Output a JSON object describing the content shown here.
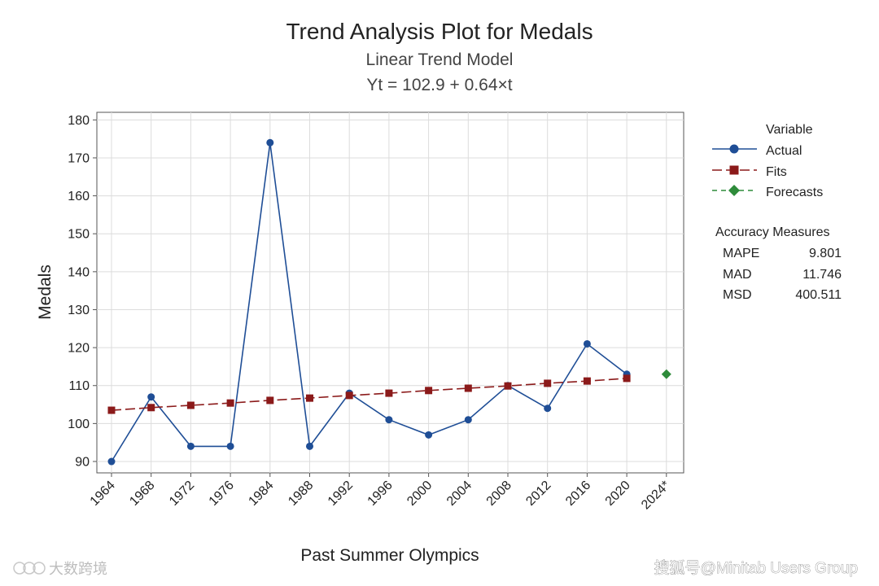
{
  "colors": {
    "actual": "#1f4e96",
    "fits": "#8b1a1a",
    "forecast": "#2e8b3a",
    "grid": "#dcdcdc"
  },
  "chart_data": {
    "type": "line",
    "title": "Trend Analysis Plot for Medals",
    "subtitle": "Linear Trend Model",
    "equation": "Yt = 102.9 + 0.64×t",
    "xlabel": "Past Summer Olympics",
    "ylabel": "Medals",
    "categories": [
      "1964",
      "1968",
      "1972",
      "1976",
      "1984",
      "1988",
      "1992",
      "1996",
      "2000",
      "2004",
      "2008",
      "2012",
      "2016",
      "2020",
      "2024*"
    ],
    "ylim": [
      87,
      182
    ],
    "yticks": [
      90,
      100,
      110,
      120,
      130,
      140,
      150,
      160,
      170,
      180
    ],
    "grid": true,
    "legend_placement": "right",
    "series": [
      {
        "name": "Actual",
        "style": "solid",
        "marker": "circle",
        "values": [
          90,
          107,
          94,
          94,
          174,
          94,
          108,
          101,
          97,
          101,
          110,
          104,
          121,
          113,
          null
        ]
      },
      {
        "name": "Fits",
        "style": "dashed",
        "marker": "square",
        "values": [
          103.5,
          104.2,
          104.8,
          105.4,
          106.1,
          106.7,
          107.4,
          108.0,
          108.7,
          109.3,
          109.9,
          110.6,
          111.2,
          111.9,
          null
        ]
      },
      {
        "name": "Forecasts",
        "style": "dashed",
        "marker": "diamond",
        "values": [
          null,
          null,
          null,
          null,
          null,
          null,
          null,
          null,
          null,
          null,
          null,
          null,
          null,
          null,
          113
        ]
      }
    ],
    "legend_title": "Variable",
    "accuracy": {
      "title": "Accuracy Measures",
      "rows": [
        {
          "label": "MAPE",
          "value": "9.801"
        },
        {
          "label": "MAD",
          "value": "11.746"
        },
        {
          "label": "MSD",
          "value": "400.511"
        }
      ]
    }
  },
  "watermarks": {
    "left": "大数跨境",
    "right": "搜狐号@Minitab Users Group"
  }
}
